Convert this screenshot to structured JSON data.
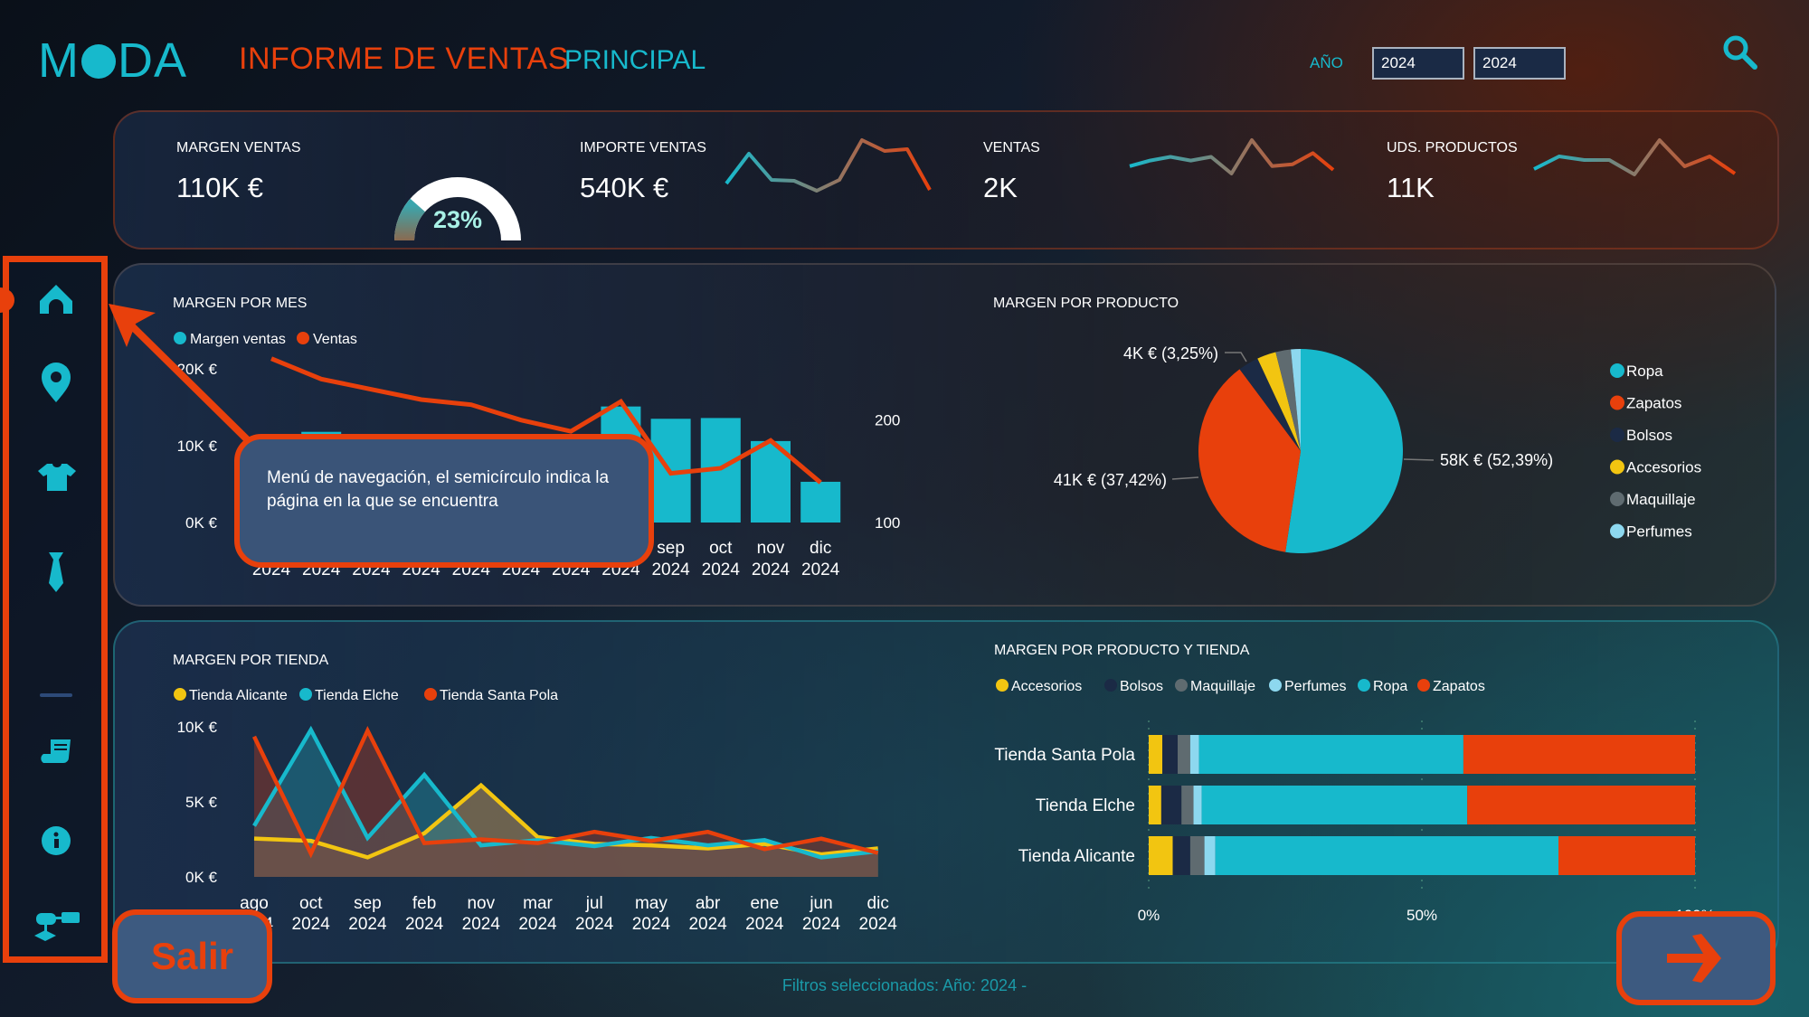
{
  "header": {
    "logo_left": "M",
    "logo_right": "DA",
    "title": "INFORME DE VENTAS",
    "page": "PRINCIPAL",
    "year_label": "AÑO",
    "year_from": "2024",
    "year_to": "2024",
    "search_icon": "search-icon"
  },
  "kpis": [
    {
      "label": "MARGEN VENTAS",
      "value": "110K €"
    },
    {
      "label": "IMPORTE VENTAS",
      "value": "540K €",
      "trend": [
        17,
        50,
        21,
        20,
        9,
        21,
        65,
        53,
        55,
        10
      ]
    },
    {
      "label": "VENTAS",
      "value": "2K",
      "trend": [
        37,
        43,
        47,
        43,
        47,
        29,
        65,
        37,
        39,
        51,
        33
      ]
    },
    {
      "label": "UDS. PRODUCTOS",
      "value": "11K",
      "trend": [
        33,
        47,
        43,
        43,
        27,
        65,
        36,
        47,
        28
      ]
    }
  ],
  "gauge": {
    "percent": 23,
    "label": "23%"
  },
  "sidebar": {
    "active": 0,
    "items": [
      {
        "icon": "home-icon"
      },
      {
        "icon": "location-pin-icon"
      },
      {
        "icon": "shirt-icon"
      },
      {
        "icon": "tie-icon"
      },
      {
        "icon": "divider"
      },
      {
        "icon": "scroll-icon"
      },
      {
        "icon": "info-icon"
      },
      {
        "icon": "flowchart-icon"
      }
    ]
  },
  "tooltip": {
    "text": "Menú de navegación, el semicírculo indica la página en la que se encuentra"
  },
  "buttons": {
    "exit": "Salir",
    "next_icon": "arrow-right-icon"
  },
  "footer": {
    "filters": "Filtros seleccionados: Año: 2024 -"
  },
  "colors": {
    "teal": "#17b9cc",
    "orange": "#e8400c",
    "yellow": "#f2c511",
    "navy": "#1b2a45",
    "gray": "#5f6b70",
    "lightblue": "#8dd8ef"
  },
  "chart_data": [
    {
      "type": "bar+line",
      "title": "MARGEN POR MES",
      "legend": [
        "Margen ventas",
        "Ventas"
      ],
      "months": [
        "",
        "",
        "",
        "",
        "",
        "",
        "",
        "",
        "sep",
        "oct",
        "nov",
        "dic"
      ],
      "years": [
        "2024",
        "2024",
        "2024",
        "2024",
        "2024",
        "2024",
        "2024",
        "2024",
        "2024",
        "2024",
        "2024",
        "2024"
      ],
      "series": [
        {
          "name": "Margen ventas",
          "unit": "€",
          "values": [
            9000,
            11800,
            10000,
            8500,
            9500,
            7500,
            10000,
            15100,
            13500,
            13600,
            10600,
            5300
          ]
        },
        {
          "name": "Ventas",
          "axis": "right",
          "values": [
            260,
            240,
            230,
            220,
            215,
            200,
            189,
            218,
            148,
            153,
            180,
            139
          ]
        }
      ],
      "yticks": [
        "0K €",
        "10K €",
        "20K €"
      ],
      "ylim": [
        0,
        20000
      ],
      "y2ticks": [
        "100",
        "200"
      ],
      "y2lim": [
        100,
        250
      ]
    },
    {
      "type": "pie",
      "title": "MARGEN POR PRODUCTO",
      "categories": [
        "Ropa",
        "Zapatos",
        "Bolsos",
        "Accesorios",
        "Maquillaje",
        "Perfumes"
      ],
      "values": [
        52.39,
        37.42,
        3.25,
        3.0,
        2.4,
        1.54
      ],
      "labels": [
        "58K € (52,39%)",
        "41K € (37,42%)",
        "4K € (3,25%)",
        "",
        "",
        ""
      ],
      "legend": "right"
    },
    {
      "type": "area",
      "title": "MARGEN POR TIENDA",
      "months": [
        "ago",
        "oct",
        "sep",
        "feb",
        "nov",
        "mar",
        "jul",
        "may",
        "abr",
        "ene",
        "jun",
        "dic"
      ],
      "years": [
        "2024",
        "2024",
        "2024",
        "2024",
        "2024",
        "2024",
        "2024",
        "2024",
        "2024",
        "2024",
        "2024",
        "2024"
      ],
      "series": [
        {
          "name": "Tienda Alicante",
          "values": [
            2550,
            2400,
            1300,
            2900,
            6100,
            2650,
            2200,
            2100,
            1900,
            2200,
            1500,
            1900
          ]
        },
        {
          "name": "Tienda Elche",
          "values": [
            3400,
            9800,
            2600,
            6800,
            2100,
            2450,
            2050,
            2600,
            2100,
            2450,
            1300,
            1700
          ]
        },
        {
          "name": "Tienda Santa Pola",
          "values": [
            9350,
            1550,
            9750,
            2250,
            2500,
            2250,
            3000,
            2400,
            3000,
            1850,
            2550,
            1600
          ]
        }
      ],
      "yticks": [
        "0K €",
        "5K €",
        "10K €"
      ],
      "ylim": [
        0,
        10000
      ]
    },
    {
      "type": "stacked-bar-100",
      "title": "MARGEN POR PRODUCTO Y TIENDA",
      "legend": [
        "Accesorios",
        "Bolsos",
        "Maquillaje",
        "Perfumes",
        "Ropa",
        "Zapatos"
      ],
      "categories": [
        "Tienda Santa Pola",
        "Tienda Elche",
        "Tienda Alicante"
      ],
      "values": [
        [
          2.5,
          2.8,
          2.3,
          1.6,
          48.4,
          42.4
        ],
        [
          2.3,
          3.7,
          2.2,
          1.5,
          48.6,
          41.7
        ],
        [
          4.4,
          3.2,
          2.6,
          2.0,
          62.8,
          25.0
        ]
      ],
      "xticks": [
        "0%",
        "50%",
        "100%"
      ]
    }
  ]
}
